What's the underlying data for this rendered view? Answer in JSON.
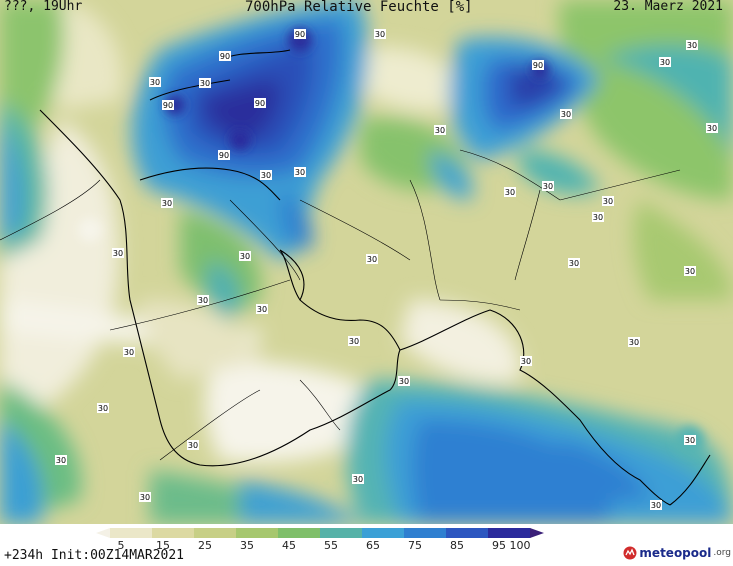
{
  "header": {
    "time_label": "???, 19Uhr",
    "title": "700hPa Relative Feuchte [%]",
    "date": "23. Maerz 2021"
  },
  "footer": {
    "run_info": "+234h Init:00Z14MAR2021",
    "logo_text": "meteopool",
    "logo_suffix": ".org"
  },
  "legend": {
    "ticks": [
      "5",
      "15",
      "25",
      "35",
      "45",
      "55",
      "65",
      "75",
      "85",
      "95",
      "100"
    ],
    "colors": [
      "#f4f1e6",
      "#ebe7c8",
      "#dcd9a2",
      "#c7cf86",
      "#a6c76e",
      "#7fbf6a",
      "#56b2a8",
      "#3ba0d6",
      "#2f7fd0",
      "#2c56c0",
      "#2a2a9c",
      "#3a1f78"
    ]
  },
  "map": {
    "contour_labels_30": "30",
    "contour_labels_90": "90"
  }
}
